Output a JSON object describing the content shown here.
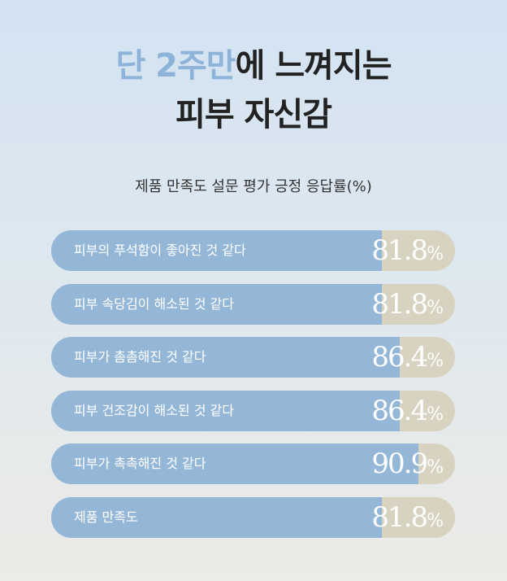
{
  "headline": {
    "line1_highlight": "단 2주만",
    "line1_rest": "에 느껴지는",
    "line2": "피부 자신감"
  },
  "chart_data": {
    "type": "bar",
    "title": "제품 만족도 설문 평가 긍정 응답률(%)",
    "xlim": [
      0,
      100
    ],
    "categories": [
      "피부의 푸석함이 좋아진 것 같다",
      "피부 속당김이 해소된 것 같다",
      "피부가 촘촘해진 것 같다",
      "피부 건조감이 해소된 것 같다",
      "피부가 촉촉해진 것 같다",
      "제품 만족도"
    ],
    "values": [
      81.8,
      81.8,
      86.4,
      86.4,
      90.9,
      81.8
    ],
    "value_labels": [
      "81.8",
      "81.8",
      "86.4",
      "86.4",
      "90.9",
      "81.8"
    ],
    "unit": "%"
  },
  "colors": {
    "fill": "#94b7d8",
    "track": "#d8d3c0",
    "highlight": "#8eb3d9",
    "text": "#222222"
  }
}
